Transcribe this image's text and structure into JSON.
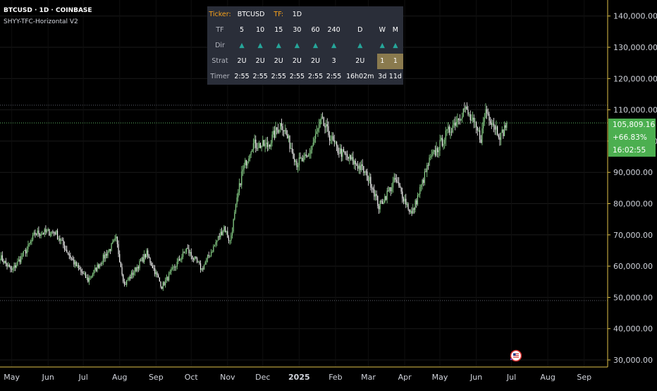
{
  "header": {
    "symbol_line": "BTCUSD · 1D · COINBASE",
    "indicator_name": "SHYY-TFC-Horizontal V2"
  },
  "tfc_table": {
    "ticker_label": "Ticker:",
    "ticker_value": "BTCUSD",
    "tf_label": "TF:",
    "tf_value": "1D",
    "rows": {
      "tf": {
        "label": "TF",
        "cells": [
          "5",
          "10",
          "15",
          "30",
          "60",
          "240",
          "D",
          "W",
          "M"
        ]
      },
      "dir": {
        "label": "Dir",
        "cells": [
          "▲",
          "▲",
          "▲",
          "▲",
          "▲",
          "▲",
          "▲",
          "▲",
          "▲"
        ]
      },
      "strat": {
        "label": "Strat",
        "cells": [
          "2U",
          "2U",
          "2U",
          "2U",
          "2U",
          "3",
          "2U",
          "1",
          "1"
        ]
      },
      "timer": {
        "label": "Timer",
        "cells": [
          "2:55",
          "2:55",
          "2:55",
          "2:55",
          "2:55",
          "2:55",
          "16h02m",
          "3d",
          "11d"
        ]
      }
    },
    "colors": {
      "up": "#26a69a",
      "highlight": "#8a7a4e",
      "label_accent": "#f7a21b"
    }
  },
  "price_badge": {
    "price": "105,809.16",
    "change": "+66.83%",
    "countdown": "16:02:55",
    "color": "#4caf50"
  },
  "chart_data": {
    "type": "candlestick",
    "title": "BTCUSD · 1D · COINBASE",
    "xlabel": "",
    "ylabel": "",
    "ylim": [
      30000,
      145000
    ],
    "y_ticks": [
      30000,
      40000,
      50000,
      60000,
      70000,
      80000,
      90000,
      100000,
      110000,
      120000,
      130000,
      140000
    ],
    "y_tick_labels": [
      "30,000.00",
      "40,000.00",
      "50,000.00",
      "60,000.00",
      "70,000.00",
      "80,000.00",
      "90,000.00",
      "100,000.00",
      "110,000.00",
      "120,000.00",
      "130,000.00",
      "140,000.00"
    ],
    "x_tick_labels": [
      "May",
      "Jun",
      "Jul",
      "Aug",
      "Sep",
      "Oct",
      "Nov",
      "Dec",
      "2025",
      "Feb",
      "Mar",
      "Apr",
      "May",
      "Jun",
      "Jul",
      "Aug",
      "Sep"
    ],
    "x_tick_dates": [
      "2024-05-01",
      "2024-06-01",
      "2024-07-01",
      "2024-08-01",
      "2024-09-01",
      "2024-10-01",
      "2024-11-01",
      "2024-12-01",
      "2025-01-01",
      "2025-02-01",
      "2025-03-01",
      "2025-04-01",
      "2025-05-01",
      "2025-06-01",
      "2025-07-01",
      "2025-08-01",
      "2025-09-01"
    ],
    "x_range": [
      "2024-04-21",
      "2025-09-21"
    ],
    "price_path": [
      {
        "date": "2024-04-21",
        "close": 63000
      },
      {
        "date": "2024-05-01",
        "close": 58500
      },
      {
        "date": "2024-05-15",
        "close": 66000
      },
      {
        "date": "2024-05-21",
        "close": 70500
      },
      {
        "date": "2024-06-07",
        "close": 71000
      },
      {
        "date": "2024-06-24",
        "close": 60500
      },
      {
        "date": "2024-07-05",
        "close": 55500
      },
      {
        "date": "2024-07-29",
        "close": 68500
      },
      {
        "date": "2024-08-05",
        "close": 54000
      },
      {
        "date": "2024-08-24",
        "close": 64000
      },
      {
        "date": "2024-09-06",
        "close": 53500
      },
      {
        "date": "2024-09-27",
        "close": 65500
      },
      {
        "date": "2024-10-10",
        "close": 59000
      },
      {
        "date": "2024-10-29",
        "close": 72500
      },
      {
        "date": "2024-11-03",
        "close": 67800
      },
      {
        "date": "2024-11-13",
        "close": 89500
      },
      {
        "date": "2024-11-22",
        "close": 99000
      },
      {
        "date": "2024-12-05",
        "close": 98500
      },
      {
        "date": "2024-12-17",
        "close": 106000
      },
      {
        "date": "2024-12-30",
        "close": 93000
      },
      {
        "date": "2025-01-08",
        "close": 94500
      },
      {
        "date": "2025-01-20",
        "close": 106500
      },
      {
        "date": "2025-02-02",
        "close": 97500
      },
      {
        "date": "2025-02-24",
        "close": 91000
      },
      {
        "date": "2025-03-04",
        "close": 86000
      },
      {
        "date": "2025-03-10",
        "close": 79000
      },
      {
        "date": "2025-03-24",
        "close": 87500
      },
      {
        "date": "2025-04-07",
        "close": 76500
      },
      {
        "date": "2025-04-22",
        "close": 93500
      },
      {
        "date": "2025-05-08",
        "close": 103000
      },
      {
        "date": "2025-05-22",
        "close": 110500
      },
      {
        "date": "2025-06-05",
        "close": 101000
      },
      {
        "date": "2025-06-09",
        "close": 110000
      },
      {
        "date": "2025-06-22",
        "close": 101500
      },
      {
        "date": "2025-06-27",
        "close": 105809.16
      }
    ],
    "reference_lines": [
      {
        "value": 111500,
        "style": "dotted"
      },
      {
        "value": 105809.16,
        "style": "dotted"
      },
      {
        "value": 49000,
        "style": "dotted"
      }
    ],
    "last_price": 105809.16,
    "grid": true,
    "legend": "none"
  }
}
